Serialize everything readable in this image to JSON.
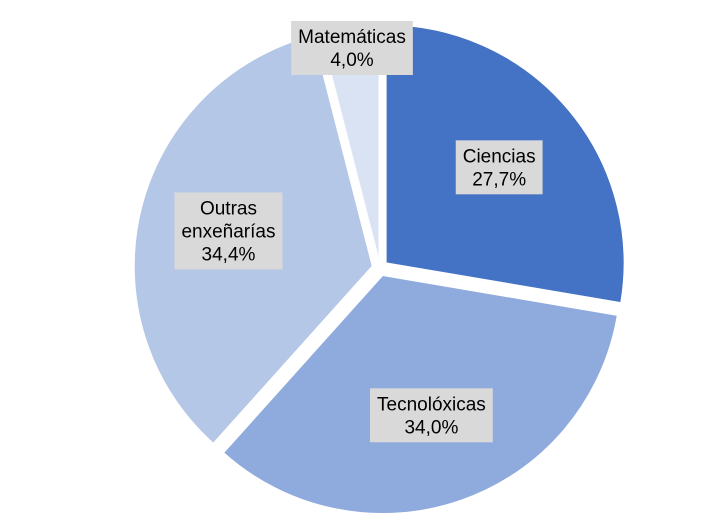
{
  "chart_data": {
    "type": "pie",
    "title": "",
    "start_angle_deg": 0,
    "direction": "clockwise",
    "exploded": true,
    "slices": [
      {
        "name": "Ciencias",
        "label_lines": [
          "Ciencias"
        ],
        "value": 27.7,
        "value_label": "27,7%",
        "color": "#4472c4"
      },
      {
        "name": "Tecnolóxicas",
        "label_lines": [
          "Tecnolóxicas"
        ],
        "value": 34.0,
        "value_label": "34,0%",
        "color": "#8faadc"
      },
      {
        "name": "Outras enxeñarías",
        "label_lines": [
          "Outras",
          "enxeñarías"
        ],
        "value": 34.4,
        "value_label": "34,4%",
        "color": "#b4c7e7"
      },
      {
        "name": "Matemáticas",
        "label_lines": [
          "Matemáticas"
        ],
        "value": 4.0,
        "value_label": "4,0%",
        "color": "#dae3f3"
      }
    ],
    "data_labels": {
      "show_category": true,
      "show_percent": true,
      "background": "#d9d9d9"
    },
    "legend": "none"
  }
}
